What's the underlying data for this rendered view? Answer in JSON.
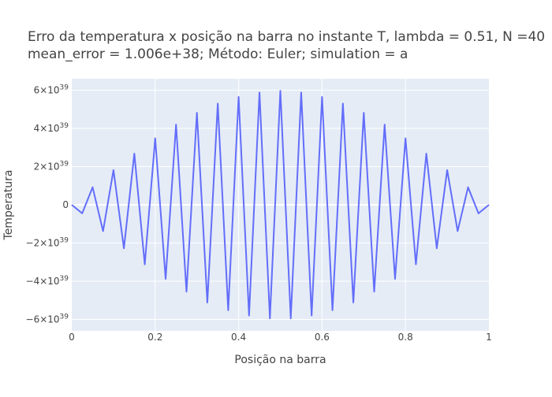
{
  "chart_data": {
    "type": "line",
    "title_lines": [
      "Erro da temperatura x posição na barra no instante T, lambda = 0.51, N =40",
      "mean_error = 1.006e+38; Método: Euler; simulation = a"
    ],
    "xlabel": "Posição na barra",
    "ylabel": "Temperatura",
    "xlim": [
      0,
      1
    ],
    "ylim": [
      -6.6e+39,
      6.6e+39
    ],
    "grid": true,
    "x_ticks": [
      {
        "value": 0,
        "label": "0"
      },
      {
        "value": 0.2,
        "label": "0.2"
      },
      {
        "value": 0.4,
        "label": "0.4"
      },
      {
        "value": 0.6,
        "label": "0.6"
      },
      {
        "value": 0.8,
        "label": "0.8"
      },
      {
        "value": 1,
        "label": "1"
      }
    ],
    "y_ticks": [
      {
        "value": 6e+39,
        "mant": "6×10",
        "exp": "39"
      },
      {
        "value": 4e+39,
        "mant": "4×10",
        "exp": "39"
      },
      {
        "value": 2e+39,
        "mant": "2×10",
        "exp": "39"
      },
      {
        "value": 0,
        "mant": "0",
        "exp": ""
      },
      {
        "value": -2e+39,
        "mant": "−2×10",
        "exp": "39"
      },
      {
        "value": -4e+39,
        "mant": "−4×10",
        "exp": "39"
      },
      {
        "value": -6e+39,
        "mant": "−6×10",
        "exp": "39"
      }
    ],
    "series": [
      {
        "color": "#636efa",
        "x": [
          0,
          0.025,
          0.05,
          0.075,
          0.1,
          0.125,
          0.15,
          0.175,
          0.2,
          0.225,
          0.25,
          0.275,
          0.3,
          0.325,
          0.35,
          0.375,
          0.4,
          0.425,
          0.45,
          0.475,
          0.5,
          0.525,
          0.55,
          0.575,
          0.6,
          0.625,
          0.65,
          0.675,
          0.7,
          0.725,
          0.75,
          0.775,
          0.8,
          0.825,
          0.85,
          0.875,
          0.9,
          0.925,
          0.95,
          0.975,
          1
        ],
        "y": [
          0,
          -4.5e+38,
          9.2e+38,
          -1.38e+39,
          1.82e+39,
          -2.28e+39,
          2.68e+39,
          -3.12e+39,
          3.48e+39,
          -3.88e+39,
          4.2e+39,
          -4.55e+39,
          4.82e+39,
          -5.12e+39,
          5.3e+39,
          -5.52e+39,
          5.65e+39,
          -5.8e+39,
          5.88e+39,
          -5.95e+39,
          5.97e+39,
          -5.95e+39,
          5.88e+39,
          -5.8e+39,
          5.65e+39,
          -5.52e+39,
          5.3e+39,
          -5.12e+39,
          4.82e+39,
          -4.55e+39,
          4.2e+39,
          -3.88e+39,
          3.48e+39,
          -3.12e+39,
          2.68e+39,
          -2.28e+39,
          1.82e+39,
          -1.38e+39,
          9.2e+38,
          -4.5e+38,
          0
        ]
      }
    ]
  }
}
